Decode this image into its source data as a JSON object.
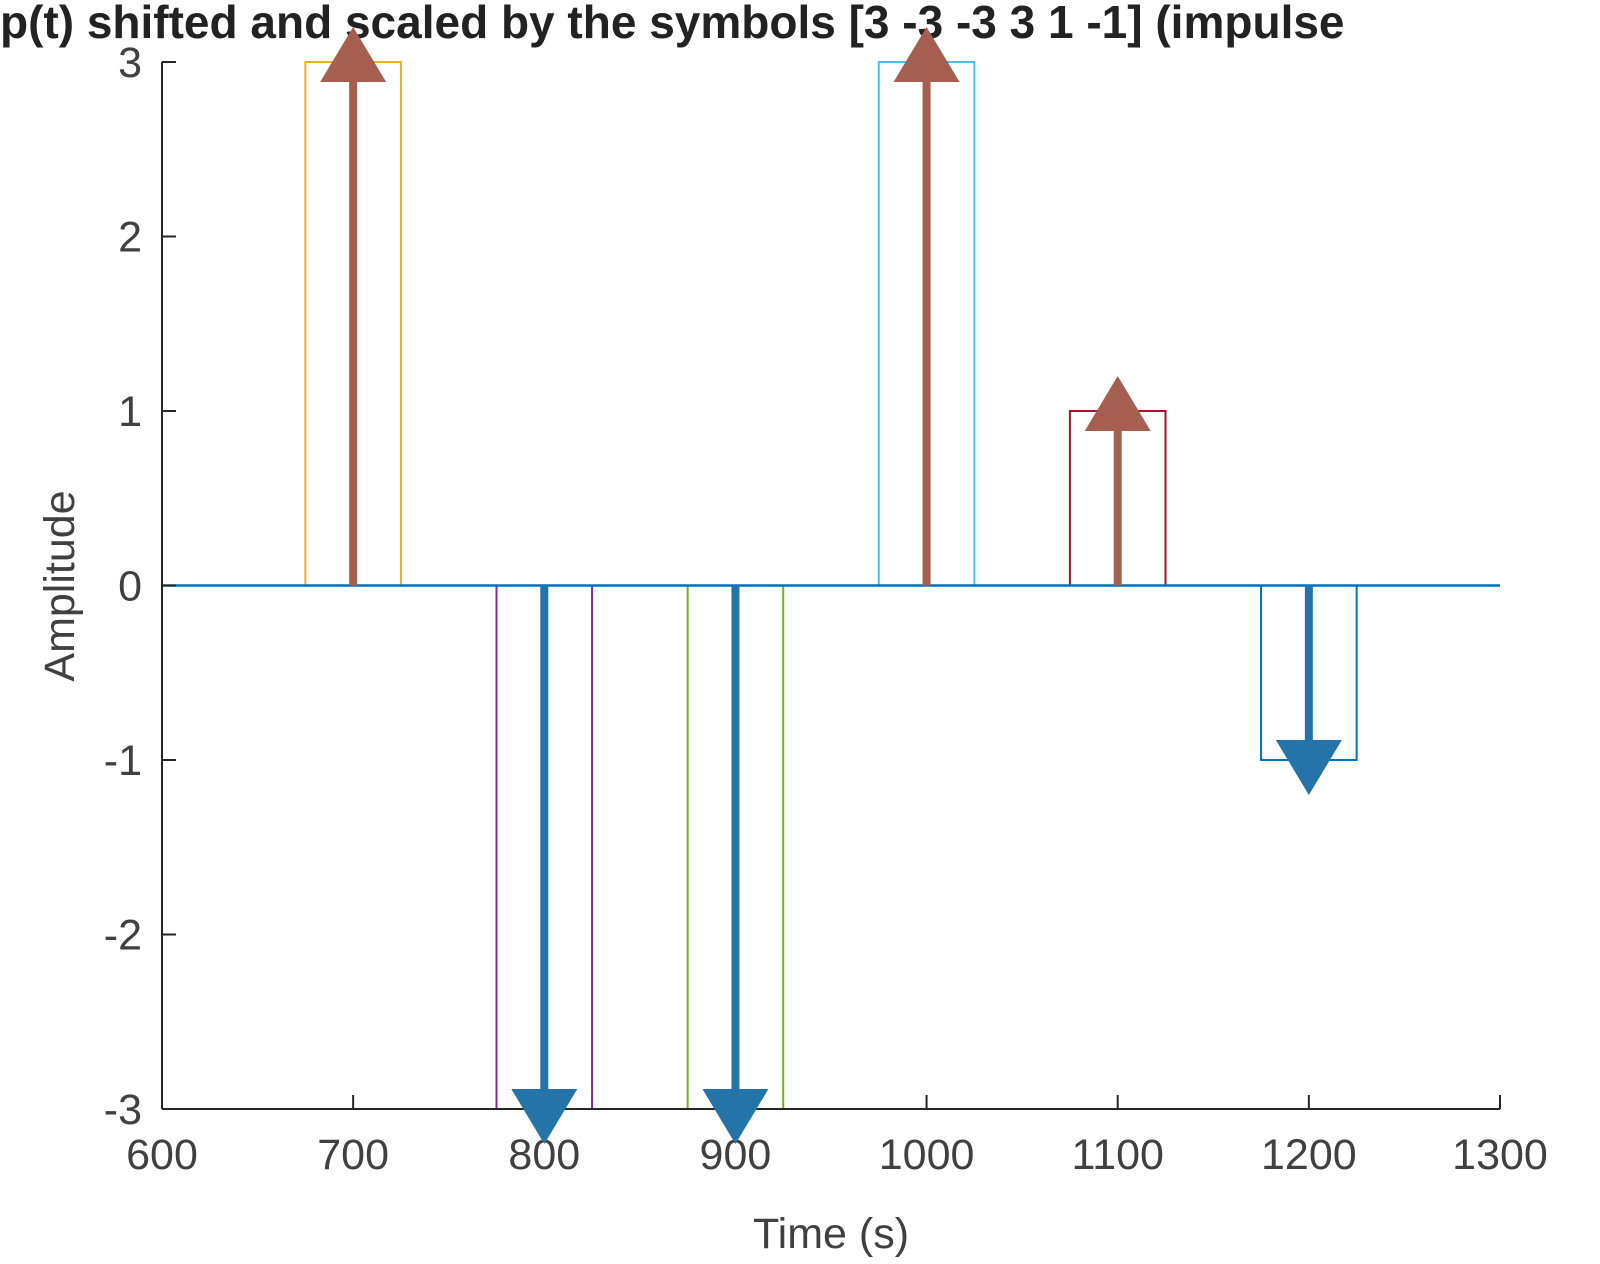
{
  "chart_data": {
    "type": "line",
    "title": "p(t) shifted and scaled by the symbols [3 -3 -3  3  1 -1] (impulse",
    "xlabel": "Time (s)",
    "ylabel": "Amplitude",
    "xlim": [
      600,
      1300
    ],
    "ylim": [
      -3,
      3
    ],
    "xticks": [
      600,
      700,
      800,
      900,
      1000,
      1100,
      1200,
      1300
    ],
    "xtick_labels": [
      "600",
      "700",
      "800",
      "900",
      "1000",
      "1100",
      "1200",
      "1300"
    ],
    "yticks": [
      -3,
      -2,
      -1,
      0,
      1,
      2,
      3
    ],
    "ytick_labels": [
      "-3",
      "-2",
      "-1",
      "0",
      "1",
      "2",
      "3"
    ],
    "grid": false,
    "baseline": {
      "x": [
        600,
        1300
      ],
      "y": 0,
      "color": "#0072BD"
    },
    "pulses": [
      {
        "center": 700,
        "start": 675,
        "end": 725,
        "amplitude": 3,
        "color": "#EDB120"
      },
      {
        "center": 800,
        "start": 775,
        "end": 825,
        "amplitude": -3,
        "color": "#7E2F8E"
      },
      {
        "center": 900,
        "start": 875,
        "end": 925,
        "amplitude": -3,
        "color": "#77AC30"
      },
      {
        "center": 1000,
        "start": 975,
        "end": 1025,
        "amplitude": 3,
        "color": "#4DBEEE"
      },
      {
        "center": 1100,
        "start": 1075,
        "end": 1125,
        "amplitude": 1,
        "color": "#A2142F"
      },
      {
        "center": 1200,
        "start": 1175,
        "end": 1225,
        "amplitude": -1,
        "color": "#0072BD"
      }
    ],
    "impulses": [
      {
        "x": 700,
        "value": 3
      },
      {
        "x": 800,
        "value": -3
      },
      {
        "x": 900,
        "value": -3
      },
      {
        "x": 1000,
        "value": 3
      },
      {
        "x": 1100,
        "value": 1
      },
      {
        "x": 1200,
        "value": -1
      }
    ],
    "impulse_colors": {
      "positive": "#A65E50",
      "negative": "#2474A9"
    }
  }
}
